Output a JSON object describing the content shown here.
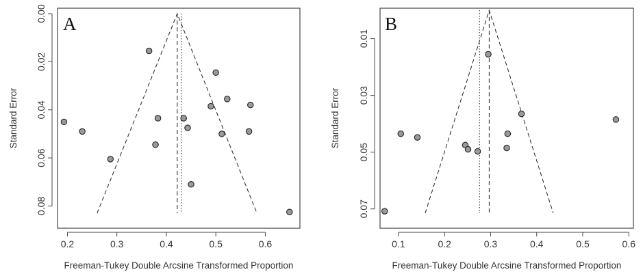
{
  "chart_data": [
    {
      "type": "scatter",
      "panel_label": "A",
      "xlabel": "Freeman-Tukey Double Arcsine Transformed Proportion",
      "ylabel": "Standard Error",
      "xlim": [
        0.18,
        0.67
      ],
      "ylim": [
        0.0,
        0.083
      ],
      "y_reversed": true,
      "xticks": [
        0.2,
        0.3,
        0.4,
        0.5,
        0.6
      ],
      "xtick_labels": [
        "0.2",
        "0.3",
        "0.4",
        "0.5",
        "0.6"
      ],
      "yticks": [
        0.0,
        0.02,
        0.04,
        0.06,
        0.08
      ],
      "ytick_labels": [
        "0.00",
        "0.02",
        "0.04",
        "0.06",
        "0.08"
      ],
      "funnel": {
        "apex": [
          0.422,
          0.0
        ],
        "base_left": [
          0.26,
          0.083
        ],
        "base_right": [
          0.583,
          0.083
        ]
      },
      "reference_lines": {
        "dashed_x": 0.422,
        "dotted_x": 0.43
      },
      "points": [
        {
          "x": 0.365,
          "y": 0.0155
        },
        {
          "x": 0.5,
          "y": 0.0245
        },
        {
          "x": 0.523,
          "y": 0.0355
        },
        {
          "x": 0.49,
          "y": 0.0385
        },
        {
          "x": 0.57,
          "y": 0.038
        },
        {
          "x": 0.383,
          "y": 0.0435
        },
        {
          "x": 0.435,
          "y": 0.0435
        },
        {
          "x": 0.443,
          "y": 0.0475
        },
        {
          "x": 0.193,
          "y": 0.045
        },
        {
          "x": 0.23,
          "y": 0.049
        },
        {
          "x": 0.512,
          "y": 0.05
        },
        {
          "x": 0.567,
          "y": 0.049
        },
        {
          "x": 0.378,
          "y": 0.0545
        },
        {
          "x": 0.287,
          "y": 0.0605
        },
        {
          "x": 0.45,
          "y": 0.071
        },
        {
          "x": 0.649,
          "y": 0.0825
        }
      ]
    },
    {
      "type": "scatter",
      "panel_label": "B",
      "xlabel": "Freeman-Tukey Double Arcsine Transformed Proportion",
      "ylabel": "Standard Error",
      "xlim": [
        0.06,
        0.61
      ],
      "ylim": [
        0.0,
        0.0715
      ],
      "y_reversed": true,
      "xticks": [
        0.1,
        0.2,
        0.3,
        0.4,
        0.5,
        0.6
      ],
      "xtick_labels": [
        "0.1",
        "0.2",
        "0.3",
        "0.4",
        "0.5",
        "0.6"
      ],
      "yticks": [
        0.01,
        0.03,
        0.05,
        0.07
      ],
      "ytick_labels": [
        "0.01",
        "0.03",
        "0.05",
        "0.07"
      ],
      "funnel": {
        "apex": [
          0.297,
          0.0
        ],
        "base_left": [
          0.158,
          0.0715
        ],
        "base_right": [
          0.436,
          0.0715
        ]
      },
      "reference_lines": {
        "dashed_x": 0.297,
        "dotted_x": 0.276
      },
      "points": [
        {
          "x": 0.295,
          "y": 0.0155
        },
        {
          "x": 0.367,
          "y": 0.0365
        },
        {
          "x": 0.572,
          "y": 0.0385
        },
        {
          "x": 0.337,
          "y": 0.0435
        },
        {
          "x": 0.105,
          "y": 0.0435
        },
        {
          "x": 0.141,
          "y": 0.0448
        },
        {
          "x": 0.245,
          "y": 0.0475
        },
        {
          "x": 0.251,
          "y": 0.049
        },
        {
          "x": 0.272,
          "y": 0.0497
        },
        {
          "x": 0.335,
          "y": 0.0485
        },
        {
          "x": 0.07,
          "y": 0.0708
        }
      ]
    }
  ]
}
